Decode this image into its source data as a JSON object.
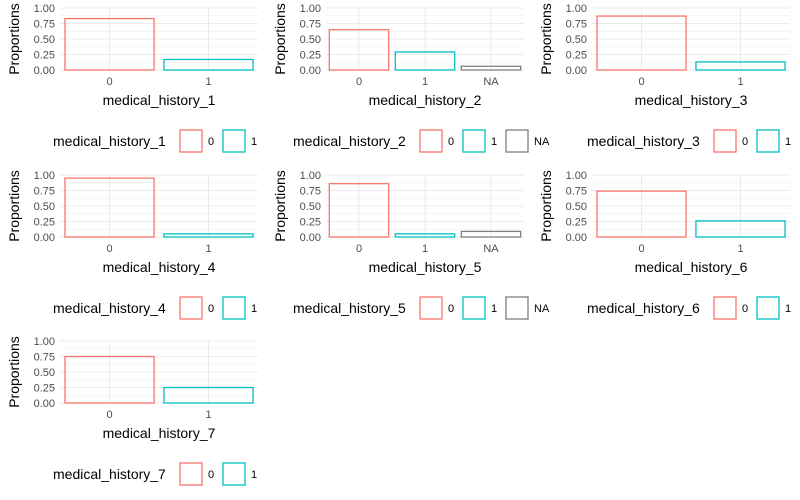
{
  "colors": {
    "0": "#F8766D",
    "1": "#00BFC4",
    "NA": "#7F7F7F",
    "grid": "#ebebeb"
  },
  "y_axis_label": "Proportions",
  "chart_data": [
    {
      "type": "bar",
      "xlabel": "medical_history_1",
      "ylabel": "Proportions",
      "legend_title": "medical_history_1",
      "categories": [
        "0",
        "1"
      ],
      "values": [
        0.83,
        0.17
      ],
      "ylim": [
        0,
        1
      ],
      "yticks": [
        "0.00",
        "0.25",
        "0.50",
        "0.75",
        "1.00"
      ],
      "legend": [
        "0",
        "1"
      ]
    },
    {
      "type": "bar",
      "xlabel": "medical_history_2",
      "ylabel": "Proportions",
      "legend_title": "medical_history_2",
      "categories": [
        "0",
        "1",
        "NA"
      ],
      "values": [
        0.65,
        0.29,
        0.06
      ],
      "ylim": [
        0,
        1
      ],
      "yticks": [
        "0.00",
        "0.25",
        "0.50",
        "0.75",
        "1.00"
      ],
      "legend": [
        "0",
        "1",
        "NA"
      ]
    },
    {
      "type": "bar",
      "xlabel": "medical_history_3",
      "ylabel": "Proportions",
      "legend_title": "medical_history_3",
      "categories": [
        "0",
        "1"
      ],
      "values": [
        0.87,
        0.13
      ],
      "ylim": [
        0,
        1
      ],
      "yticks": [
        "0.00",
        "0.25",
        "0.50",
        "0.75",
        "1.00"
      ],
      "legend": [
        "0",
        "1"
      ]
    },
    {
      "type": "bar",
      "xlabel": "medical_history_4",
      "ylabel": "Proportions",
      "legend_title": "medical_history_4",
      "categories": [
        "0",
        "1"
      ],
      "values": [
        0.95,
        0.05
      ],
      "ylim": [
        0,
        1
      ],
      "yticks": [
        "0.00",
        "0.25",
        "0.50",
        "0.75",
        "1.00"
      ],
      "legend": [
        "0",
        "1"
      ]
    },
    {
      "type": "bar",
      "xlabel": "medical_history_5",
      "ylabel": "Proportions",
      "legend_title": "medical_history_5",
      "categories": [
        "0",
        "1",
        "NA"
      ],
      "values": [
        0.86,
        0.05,
        0.09
      ],
      "ylim": [
        0,
        1
      ],
      "yticks": [
        "0.00",
        "0.25",
        "0.50",
        "0.75",
        "1.00"
      ],
      "legend": [
        "0",
        "1",
        "NA"
      ]
    },
    {
      "type": "bar",
      "xlabel": "medical_history_6",
      "ylabel": "Proportions",
      "legend_title": "medical_history_6",
      "categories": [
        "0",
        "1"
      ],
      "values": [
        0.74,
        0.26
      ],
      "ylim": [
        0,
        1
      ],
      "yticks": [
        "0.00",
        "0.25",
        "0.50",
        "0.75",
        "1.00"
      ],
      "legend": [
        "0",
        "1"
      ]
    },
    {
      "type": "bar",
      "xlabel": "medical_history_7",
      "ylabel": "Proportions",
      "legend_title": "medical_history_7",
      "categories": [
        "0",
        "1"
      ],
      "values": [
        0.75,
        0.25
      ],
      "ylim": [
        0,
        1
      ],
      "yticks": [
        "0.00",
        "0.25",
        "0.50",
        "0.75",
        "1.00"
      ],
      "legend": [
        "0",
        "1"
      ]
    }
  ]
}
